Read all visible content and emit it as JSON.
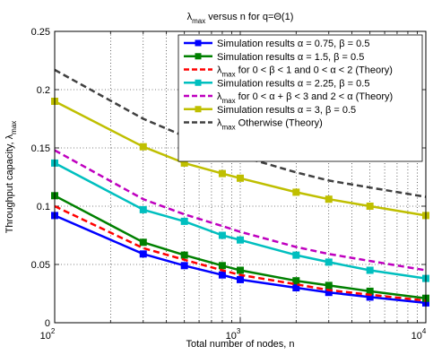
{
  "chart_data": {
    "type": "line",
    "title": {
      "main": "λ",
      "sub": "max",
      "rest": " versus n for q=Θ(1)"
    },
    "xlabel": "Total number of nodes, n",
    "ylabel": {
      "main": "Throughput capacity, λ",
      "sub": "max"
    },
    "x_scale": "log",
    "xlim": [
      100,
      10000
    ],
    "ylim": [
      0,
      0.25
    ],
    "x_ticks": [
      {
        "value": 100,
        "base": "10",
        "exp": "2"
      },
      {
        "value": 1000,
        "base": "10",
        "exp": "3"
      },
      {
        "value": 10000,
        "base": "10",
        "exp": "4"
      }
    ],
    "y_ticks": [
      {
        "value": 0,
        "label": "0"
      },
      {
        "value": 0.05,
        "label": "0.05"
      },
      {
        "value": 0.1,
        "label": "0.1"
      },
      {
        "value": 0.15,
        "label": "0.15"
      },
      {
        "value": 0.2,
        "label": "0.2"
      },
      {
        "value": 0.25,
        "label": "0.25"
      }
    ],
    "grid": true,
    "legend_position": "top-right",
    "series": [
      {
        "name": "Simulation results α = 0.75, β = 0.5",
        "color": "#0000ff",
        "style": "solid",
        "marker": "square",
        "x": [
          100,
          300,
          500,
          800,
          1000,
          2000,
          3000,
          5000,
          10000
        ],
        "y": [
          0.092,
          0.059,
          0.049,
          0.041,
          0.037,
          0.03,
          0.026,
          0.022,
          0.017
        ]
      },
      {
        "name": "Simulation results α = 1.5, β = 0.5",
        "color": "#008000",
        "style": "solid",
        "marker": "square",
        "x": [
          100,
          300,
          500,
          800,
          1000,
          2000,
          3000,
          5000,
          10000
        ],
        "y": [
          0.109,
          0.069,
          0.058,
          0.049,
          0.045,
          0.036,
          0.032,
          0.027,
          0.021
        ]
      },
      {
        "name": {
          "pre": "λ",
          "sub": "max",
          "rest": " for 0 < β < 1 and 0 < α < 2 (Theory)"
        },
        "color": "#ff0000",
        "style": "dashed",
        "marker": "none",
        "x": [
          100,
          300,
          500,
          800,
          1000,
          2000,
          3000,
          5000,
          10000
        ],
        "y": [
          0.1,
          0.064,
          0.054,
          0.045,
          0.041,
          0.033,
          0.028,
          0.024,
          0.019
        ]
      },
      {
        "name": "Simulation results α = 2.25, β = 0.5",
        "color": "#00bfbf",
        "style": "solid",
        "marker": "square",
        "x": [
          100,
          300,
          500,
          800,
          1000,
          2000,
          3000,
          5000,
          10000
        ],
        "y": [
          0.137,
          0.097,
          0.087,
          0.075,
          0.071,
          0.058,
          0.052,
          0.045,
          0.038
        ]
      },
      {
        "name": {
          "pre": "λ",
          "sub": "max",
          "rest": " for 0 < α + β < 3 and 2 < α  (Theory)"
        },
        "color": "#bf00bf",
        "style": "dashed",
        "marker": "none",
        "x": [
          100,
          300,
          500,
          800,
          1000,
          2000,
          3000,
          5000,
          10000
        ],
        "y": [
          0.148,
          0.106,
          0.093,
          0.083,
          0.078,
          0.065,
          0.059,
          0.053,
          0.045
        ]
      },
      {
        "name": "Simulation results α = 3, β = 0.5",
        "color": "#bfbf00",
        "style": "solid",
        "marker": "square",
        "x": [
          100,
          300,
          500,
          800,
          1000,
          2000,
          3000,
          5000,
          10000
        ],
        "y": [
          0.19,
          0.151,
          0.137,
          0.128,
          0.124,
          0.112,
          0.106,
          0.1,
          0.092
        ]
      },
      {
        "name": {
          "pre": "λ",
          "sub": "max",
          "rest": " Otherwise  (Theory)"
        },
        "color": "#404040",
        "style": "dashed",
        "marker": "none",
        "x": [
          100,
          300,
          500,
          800,
          1000,
          2000,
          3000,
          5000,
          10000
        ],
        "y": [
          0.217,
          0.175,
          0.16,
          0.149,
          0.143,
          0.129,
          0.122,
          0.116,
          0.108
        ]
      }
    ]
  }
}
